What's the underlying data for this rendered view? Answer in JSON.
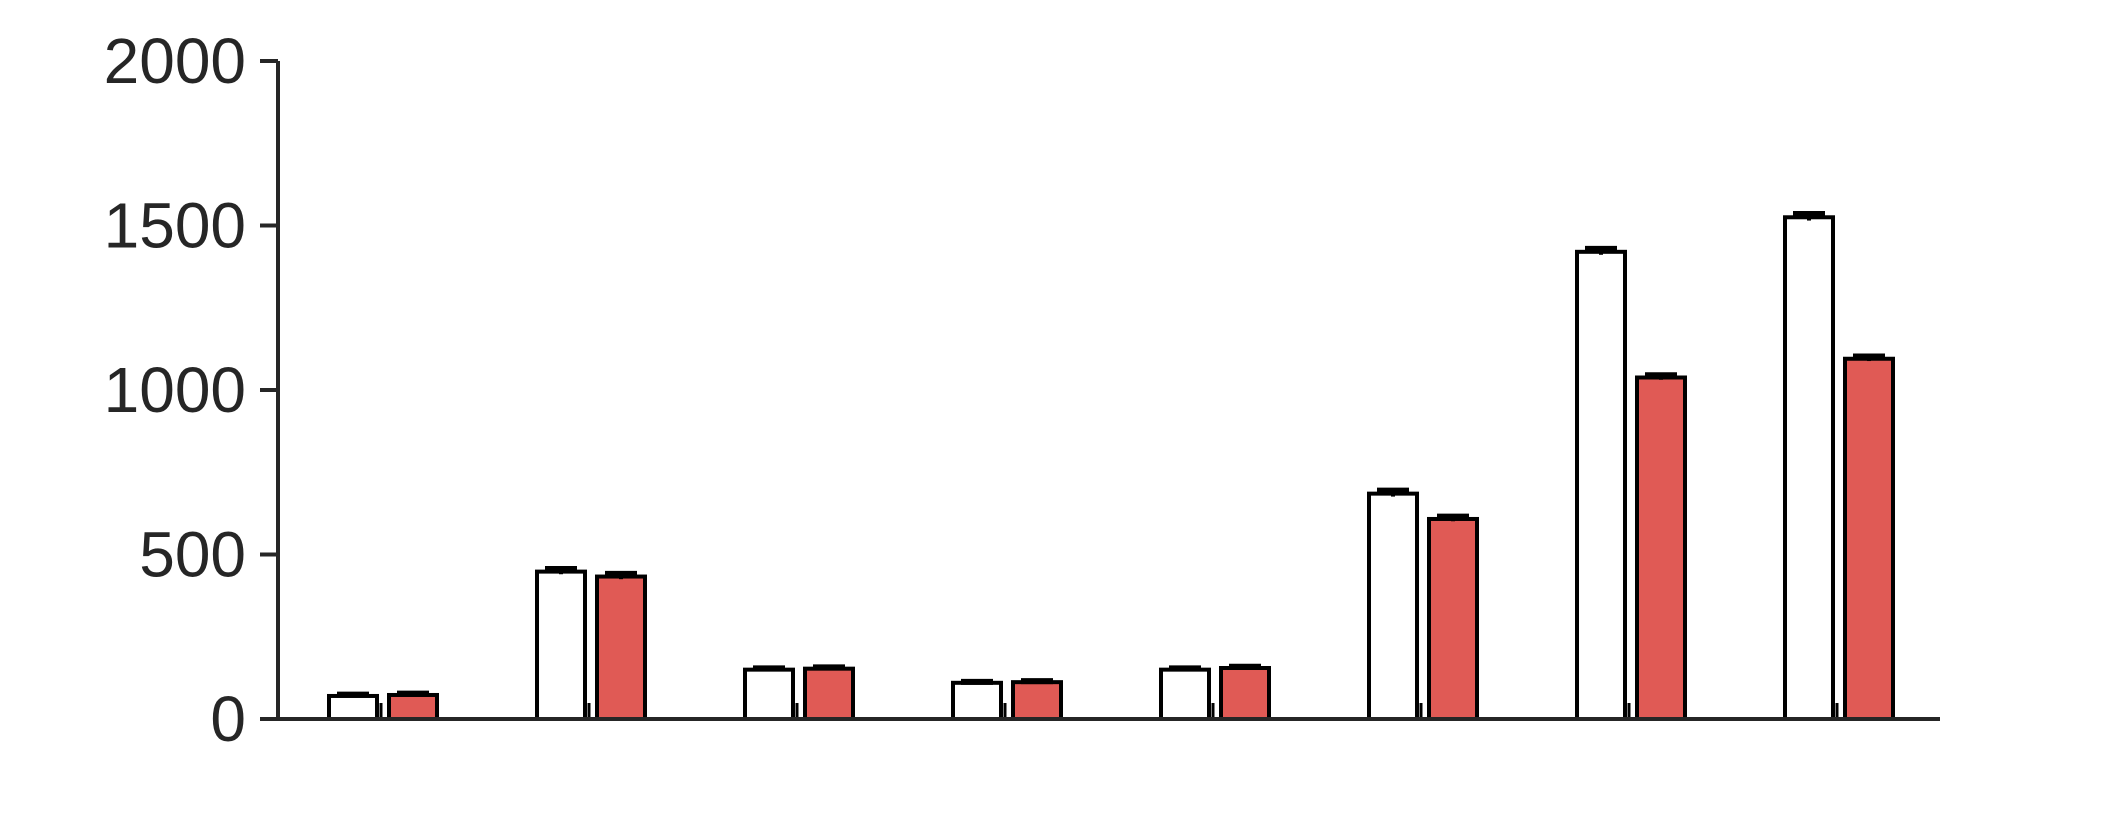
{
  "chart_data": {
    "type": "bar",
    "title": "",
    "xlabel": "",
    "ylabel": "",
    "ylim": [
      0,
      2000
    ],
    "yticks": [
      0,
      500,
      1000,
      1500,
      2000
    ],
    "ytick_labels": [
      "0",
      "500",
      "1000",
      "1500",
      "2000"
    ],
    "grid": false,
    "legend": "none",
    "category_count": 8,
    "series": [
      {
        "fill": "#ffffff",
        "values": [
          70,
          448,
          150,
          110,
          150,
          685,
          1420,
          1525
        ],
        "errors": [
          4,
          8,
          4,
          3,
          4,
          9,
          9,
          10
        ]
      },
      {
        "fill": "#e05a55",
        "values": [
          73,
          433,
          153,
          112,
          155,
          608,
          1038,
          1095
        ],
        "errors": [
          4,
          8,
          4,
          3,
          4,
          7,
          7,
          7
        ]
      }
    ],
    "colors": {
      "axis": "#262626",
      "bar_edge": "#000000"
    }
  }
}
